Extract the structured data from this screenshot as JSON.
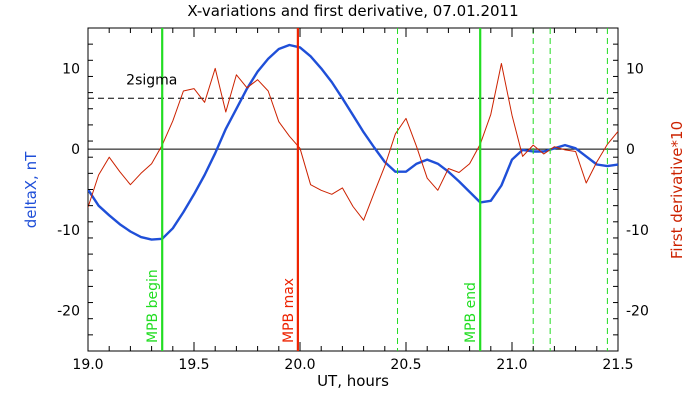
{
  "chart_data": {
    "type": "line",
    "title": "X-variations and first derivative, 07.01.2011",
    "xlabel": "UT, hours",
    "ylabel_left": "deltaX, nT",
    "ylabel_right": "First derivative*10",
    "xlim": [
      19.0,
      21.5
    ],
    "ylim": [
      -25,
      15
    ],
    "x_ticks": [
      "19.0",
      "19.5",
      "20.0",
      "20.5",
      "21.0",
      "21.5"
    ],
    "x_tick_values": [
      19.0,
      19.5,
      20.0,
      20.5,
      21.0,
      21.5
    ],
    "y_ticks": [
      "10",
      "0",
      "-10",
      "-20"
    ],
    "y_tick_values": [
      10,
      0,
      -10,
      -20
    ],
    "grid": false,
    "colors": {
      "deltaX": "#1f4fd8",
      "derivative": "#cc2200",
      "mpb": "#22dd22",
      "mpb_max": "#ee2200",
      "reference": "#000000"
    },
    "reference_lines": [
      {
        "label": "2sigma",
        "y": 6.3,
        "style": "dashed"
      },
      {
        "label": "",
        "y": 0,
        "style": "solid"
      }
    ],
    "markers": [
      {
        "label": "MPB begin",
        "x": 19.35,
        "color": "#22dd22",
        "style": "solid"
      },
      {
        "label": "MPB max",
        "x": 19.99,
        "color": "#ee2200",
        "style": "solid"
      },
      {
        "label": "MPB end",
        "x": 20.85,
        "color": "#22dd22",
        "style": "solid"
      },
      {
        "label": "",
        "x": 20.46,
        "color": "#22dd22",
        "style": "dashed"
      },
      {
        "label": "",
        "x": 21.1,
        "color": "#22dd22",
        "style": "dashed"
      },
      {
        "label": "",
        "x": 21.18,
        "color": "#22dd22",
        "style": "dashed"
      },
      {
        "label": "",
        "x": 21.45,
        "color": "#22dd22",
        "style": "dashed"
      }
    ],
    "series": [
      {
        "color": "#1f4fd8",
        "x": [
          19.0,
          19.05,
          19.1,
          19.15,
          19.2,
          19.25,
          19.3,
          19.35,
          19.4,
          19.45,
          19.5,
          19.55,
          19.6,
          19.65,
          19.7,
          19.75,
          19.8,
          19.85,
          19.9,
          19.95,
          20.0,
          20.05,
          20.1,
          20.15,
          20.2,
          20.25,
          20.3,
          20.35,
          20.4,
          20.45,
          20.5,
          20.55,
          20.6,
          20.65,
          20.7,
          20.75,
          20.8,
          20.85,
          20.9,
          20.95,
          21.0,
          21.05,
          21.1,
          21.15,
          21.2,
          21.25,
          21.3,
          21.35,
          21.4,
          21.45,
          21.5
        ],
        "values": [
          -5,
          -7,
          -8.2,
          -9.3,
          -10.2,
          -10.9,
          -11.2,
          -11.1,
          -9.8,
          -7.8,
          -5.6,
          -3.2,
          -0.5,
          2.5,
          5,
          7.5,
          9.6,
          11.2,
          12.4,
          12.9,
          12.6,
          11.5,
          10,
          8.3,
          6.3,
          4.2,
          2.1,
          0.2,
          -1.6,
          -2.8,
          -2.8,
          -1.8,
          -1.3,
          -1.8,
          -2.8,
          -4,
          -5.3,
          -6.6,
          -6.4,
          -4.5,
          -1.3,
          -0.1,
          -0.3,
          -0.3,
          0.1,
          0.5,
          0.1,
          -0.9,
          -1.9,
          -2.1,
          -1.9
        ]
      },
      {
        "color": "#cc2200",
        "x": [
          19.0,
          19.05,
          19.1,
          19.15,
          19.2,
          19.25,
          19.3,
          19.35,
          19.4,
          19.45,
          19.5,
          19.55,
          19.6,
          19.65,
          19.7,
          19.75,
          19.8,
          19.85,
          19.9,
          19.95,
          20.0,
          20.05,
          20.1,
          20.15,
          20.2,
          20.25,
          20.3,
          20.35,
          20.4,
          20.45,
          20.5,
          20.55,
          20.6,
          20.65,
          20.7,
          20.75,
          20.8,
          20.85,
          20.9,
          20.95,
          21.0,
          21.05,
          21.1,
          21.15,
          21.2,
          21.25,
          21.3,
          21.35,
          21.4,
          21.45,
          21.5
        ],
        "values": [
          -7.2,
          -3.2,
          -1,
          -2.8,
          -4.4,
          -3,
          -1.8,
          0.5,
          3.5,
          7.2,
          7.5,
          5.8,
          10,
          4.6,
          9.2,
          7.6,
          8.6,
          7.2,
          3.4,
          1.6,
          0.1,
          -4.4,
          -5.1,
          -5.6,
          -4.8,
          -7.1,
          -8.8,
          -5.4,
          -2.1,
          1.9,
          3.8,
          0.3,
          -3.6,
          -5.1,
          -2.4,
          -2.9,
          -1.8,
          0.6,
          4.3,
          10.6,
          4.2,
          -0.9,
          0.5,
          -0.6,
          0.3,
          -0.1,
          -0.3,
          -4.2,
          -1.6,
          0.6,
          2.2
        ]
      }
    ]
  }
}
